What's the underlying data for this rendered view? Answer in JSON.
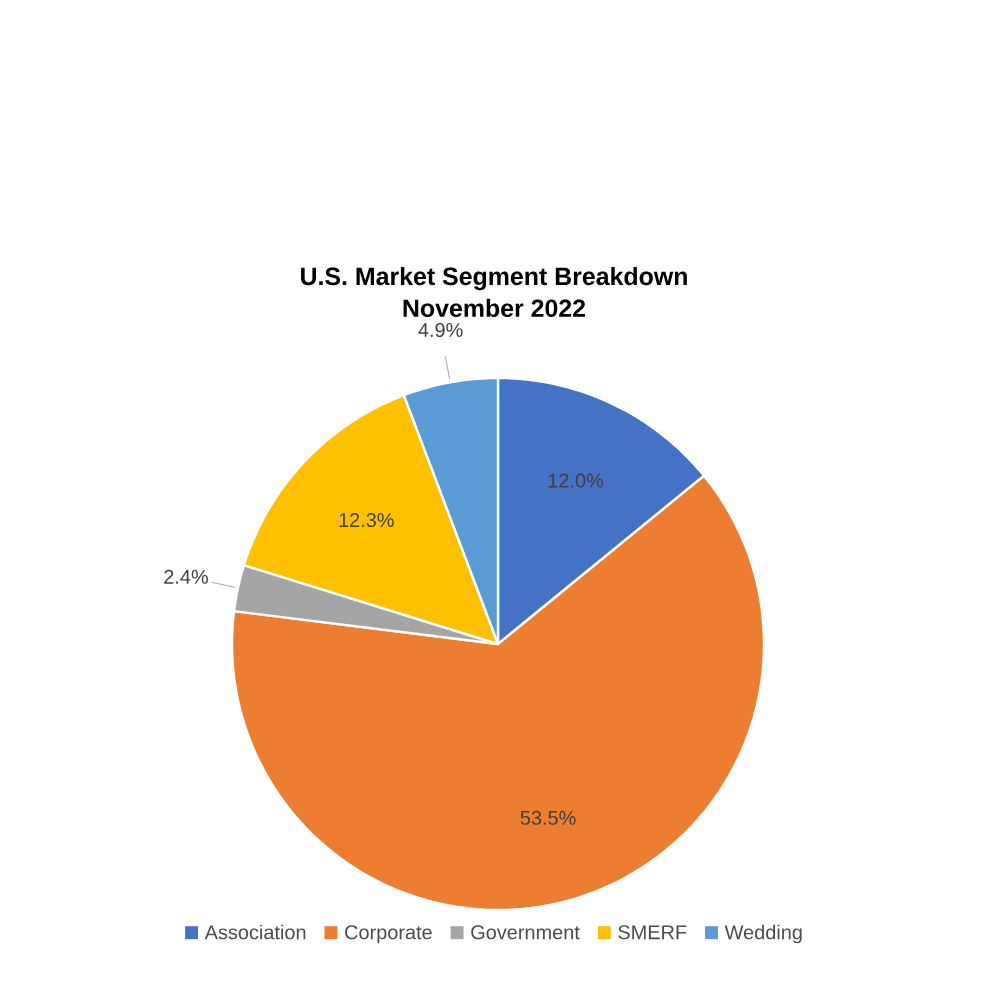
{
  "chart_data": {
    "type": "pie",
    "title": "U.S. Market Segment Breakdown",
    "subtitle": "November 2022",
    "categories": [
      "Association",
      "Corporate",
      "Government",
      "SMERF",
      "Wedding"
    ],
    "values": [
      12.0,
      53.5,
      2.4,
      12.3,
      4.9
    ],
    "value_labels": [
      "12.0%",
      "53.5%",
      "2.4%",
      "12.3%",
      "4.9%"
    ],
    "colors": [
      "#4472c4",
      "#ed7d31",
      "#a5a5a5",
      "#ffc000",
      "#5b9bd5"
    ],
    "legend": "bottom"
  }
}
